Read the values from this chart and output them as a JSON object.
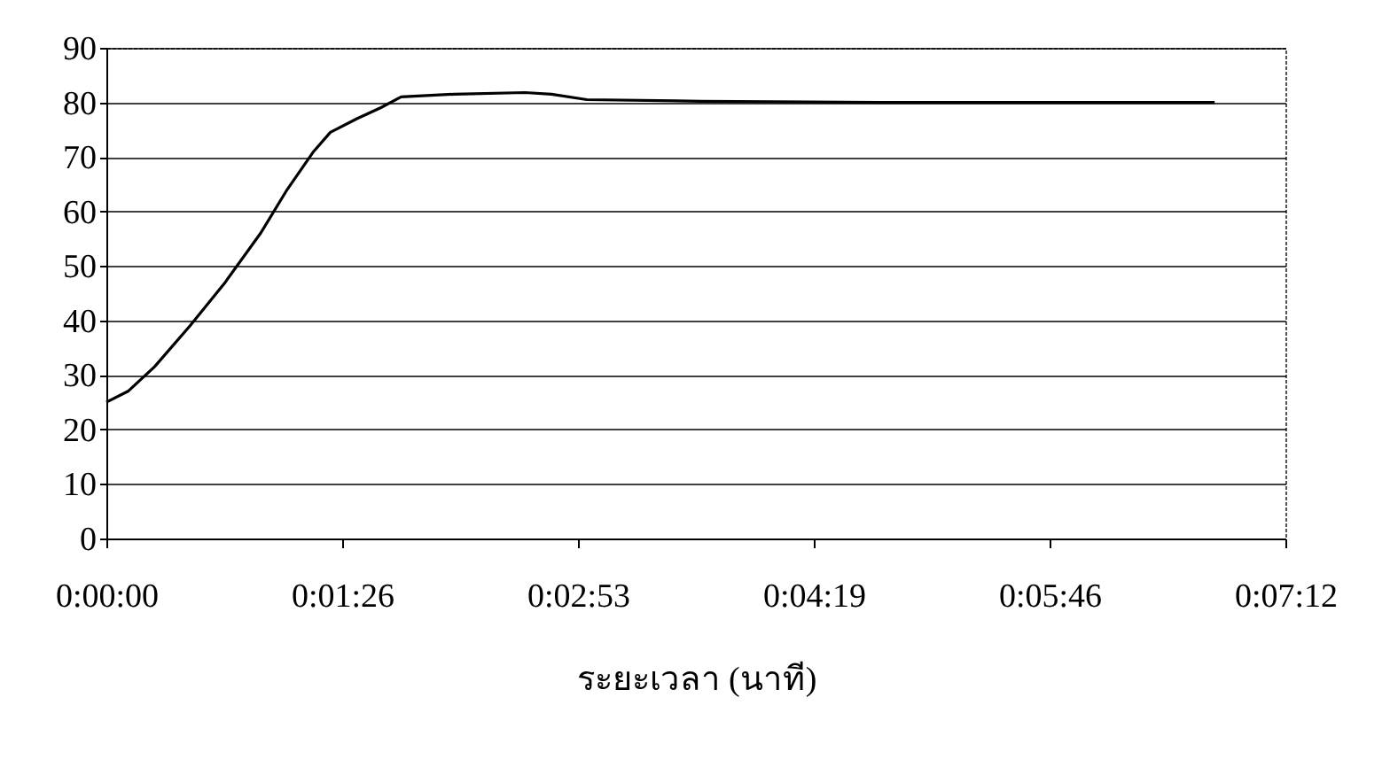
{
  "chart_data": {
    "type": "line",
    "xlabel": "ระยะเวลา (นาที)",
    "x": [
      0,
      0.0022,
      0.0049,
      0.0085,
      0.0121,
      0.0157,
      0.0184,
      0.0211,
      0.0228,
      0.0255,
      0.0279,
      0.03,
      0.0354,
      0.0426,
      0.0453,
      0.0489,
      0.0606,
      0.0786,
      0.102,
      0.1128
    ],
    "series": [
      {
        "color": "#000000",
        "values": [
          25,
          27,
          31.5,
          39,
          47,
          56,
          64,
          71,
          74.5,
          77,
          79,
          81,
          81.5,
          81.8,
          81.5,
          80.5,
          80.2,
          80,
          80,
          80
        ]
      }
    ],
    "xlim": [
      0,
      0.12
    ],
    "xticks": [
      {
        "value": 0,
        "label": "0:00:00"
      },
      {
        "value": 0.024,
        "label": "0:01:26"
      },
      {
        "value": 0.048,
        "label": "0:02:53"
      },
      {
        "value": 0.072,
        "label": "0:04:19"
      },
      {
        "value": 0.096,
        "label": "0:05:46"
      },
      {
        "value": 0.12,
        "label": "0:07:12"
      }
    ],
    "ylim": [
      0,
      90
    ],
    "yticks": [
      0,
      10,
      20,
      30,
      40,
      50,
      60,
      70,
      80,
      90
    ],
    "grid": "y",
    "marker": "none",
    "line_style": "solid"
  }
}
